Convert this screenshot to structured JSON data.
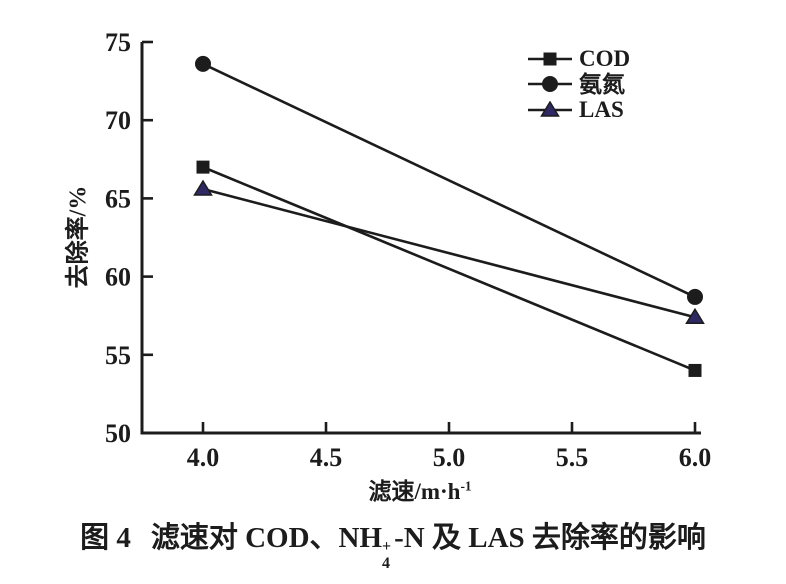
{
  "figure": {
    "caption": {
      "prefix": "图 4",
      "body_before_sub": "滤速对 COD、NH",
      "sub": "4",
      "sup": "+",
      "body_after_sub": "-N 及 LAS 去除率的影响"
    },
    "axes": {
      "x_label_base": "滤速/m·h",
      "x_label_sup": "-1",
      "y_label": "去除率/%",
      "x_tick_labels": [
        "4.0",
        "4.5",
        "5.0",
        "5.5",
        "6.0"
      ],
      "y_tick_labels": [
        "50",
        "55",
        "60",
        "65",
        "70",
        "75"
      ]
    },
    "colors": {
      "ink": "#1c1c1c",
      "las_marker": "#2e2963",
      "background": "#ffffff"
    }
  },
  "chart_data": {
    "type": "line",
    "title": "图4 滤速对 COD、NH4+-N 及 LAS 去除率的影响",
    "xlabel": "滤速/m·h-1",
    "ylabel": "去除率/%",
    "x": [
      4.0,
      6.0
    ],
    "xlim": [
      4.0,
      6.0
    ],
    "ylim": [
      50,
      75
    ],
    "x_ticks": [
      4.0,
      4.5,
      5.0,
      5.5,
      6.0
    ],
    "y_ticks": [
      50,
      55,
      60,
      65,
      70,
      75
    ],
    "grid": false,
    "legend_position": "upper right",
    "series": [
      {
        "name": "COD",
        "marker": "square",
        "marker_color": "#1c1c1c",
        "line_color": "#1c1c1c",
        "values": [
          67.0,
          54.0
        ]
      },
      {
        "name": "氨氮",
        "marker": "circle",
        "marker_color": "#1c1c1c",
        "line_color": "#1c1c1c",
        "values": [
          73.6,
          58.7
        ]
      },
      {
        "name": "LAS",
        "marker": "triangle",
        "marker_color": "#2e2963",
        "line_color": "#1c1c1c",
        "values": [
          65.6,
          57.4
        ]
      }
    ]
  }
}
